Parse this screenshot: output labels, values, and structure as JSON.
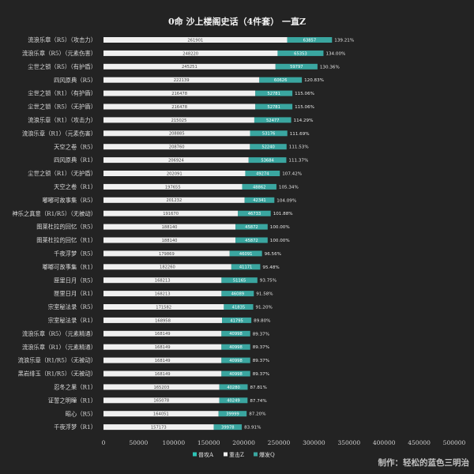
{
  "chart_data": {
    "type": "bar",
    "stacked": true,
    "orientation": "horizontal",
    "title": "0命 沙上楼阁史话（4件套） 一直Z",
    "xlim": [
      0,
      500000
    ],
    "x_ticks": [
      "0",
      "50000",
      "100000",
      "150000",
      "200000",
      "250000",
      "300000",
      "350000",
      "400000",
      "450000",
      "500000"
    ],
    "grid": false,
    "legend_position": "bottom",
    "categories": [
      "流浪乐章（R5）（攻击力）",
      "流浪乐章（R5）（元素伤害）",
      "尘世之锁（R5）（有护盾）",
      "四风原典（R5）",
      "尘世之锁（R1）（有护盾）",
      "尘世之锁（R5）（无护盾）",
      "流浪乐章（R1）（攻击力）",
      "流浪乐章（R1）（元素伤害）",
      "天空之卷（R5）",
      "四风原典（R1）",
      "尘世之锁（R1）（无护盾）",
      "天空之卷（R1）",
      "嘟嘟可故事集（R5）",
      "神乐之真意（R1/R5）（无被动）",
      "图莱杜拉的回忆（R5）",
      "图莱杜拉的回忆（R1）",
      "千夜浮梦（R5）",
      "嘟嘟可故事集（R1）",
      "匣里日月（R5）",
      "匣里日月（R1）",
      "宗室秘法录（R5）",
      "宗室秘法录（R1）",
      "流浪乐章（R5）（元素精通）",
      "流浪乐章（R1）（元素精通）",
      "流浪乐章（R1/R5）（无被动）",
      "黑岩绯玉（R1/R5）（无被动）",
      "忍冬之果（R1）",
      "证誓之明瞳（R1）",
      "昭心（R5）",
      "千夜浮梦（R1）"
    ],
    "series": [
      {
        "name": "普攻A",
        "color": "#2ec4b6",
        "values": [
          0,
          0,
          0,
          0,
          0,
          0,
          0,
          0,
          0,
          0,
          0,
          0,
          0,
          0,
          0,
          0,
          0,
          0,
          0,
          0,
          0,
          0,
          0,
          0,
          0,
          0,
          0,
          0,
          0,
          0
        ]
      },
      {
        "name": "重击Z",
        "color": "#f0f0f0",
        "values": [
          261901,
          248220,
          245251,
          222139,
          216478,
          216478,
          215025,
          208885,
          208760,
          206924,
          202091,
          197655,
          201232,
          191670,
          188140,
          188140,
          179869,
          182260,
          168213,
          168213,
          171582,
          168958,
          168149,
          168149,
          168149,
          168149,
          165203,
          165078,
          164051,
          157173
        ]
      },
      {
        "name": "爆发Q",
        "color": "#3aa6a0",
        "values": [
          63857,
          65353,
          59797,
          60626,
          52781,
          52781,
          52477,
          53176,
          52240,
          53684,
          49274,
          48862,
          42341,
          46733,
          45872,
          45872,
          46091,
          41171,
          51165,
          46089,
          41835,
          41795,
          40998,
          40998,
          40998,
          40998,
          40280,
          40249,
          39999,
          39978
        ]
      }
    ],
    "percent_labels": [
      "139.21%",
      "134.00%",
      "130.36%",
      "120.83%",
      "115.06%",
      "115.06%",
      "114.29%",
      "111.69%",
      "111.53%",
      "111.37%",
      "107.42%",
      "105.34%",
      "104.09%",
      "101.88%",
      "100.00%",
      "100.00%",
      "96.56%",
      "95.48%",
      "93.75%",
      "91.58%",
      "91.20%",
      "89.80%",
      "89.37%",
      "89.37%",
      "89.37%",
      "89.37%",
      "87.81%",
      "87.74%",
      "87.20%",
      "83.91%"
    ]
  },
  "watermark": "制作：轻松的蓝色三明治"
}
